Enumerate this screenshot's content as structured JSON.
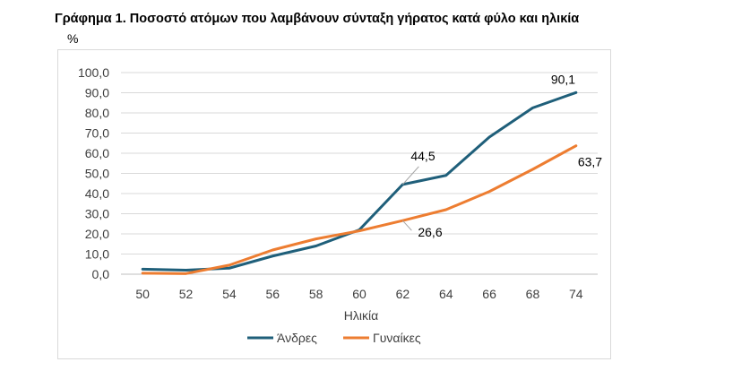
{
  "chart_data": {
    "type": "line",
    "title": "Γράφημα 1. Ποσοστό  ατόμων που λαμβάνουν σύνταξη γήρατος κατά φύλο και ηλικία",
    "ylabel": "%",
    "xlabel": "Ηλικία",
    "x": [
      "50",
      "52",
      "54",
      "56",
      "58",
      "60",
      "62",
      "64",
      "66",
      "68",
      "74"
    ],
    "ylim": [
      0,
      100
    ],
    "yticks": [
      "0,0",
      "10,0",
      "20,0",
      "30,0",
      "40,0",
      "50,0",
      "60,0",
      "70,0",
      "80,0",
      "90,0",
      "100,0"
    ],
    "grid": true,
    "legend": "bottom",
    "series": [
      {
        "name": "Άνδρες",
        "color": "#1f5f7a",
        "values": [
          2.5,
          2.0,
          3.0,
          9.0,
          14.0,
          22.0,
          44.5,
          49.0,
          68.0,
          82.5,
          90.1
        ]
      },
      {
        "name": "Γυναίκες",
        "color": "#ed7d31",
        "values": [
          0.5,
          0.3,
          4.5,
          12.0,
          17.5,
          21.5,
          26.6,
          32.0,
          41.0,
          52.0,
          63.7
        ]
      }
    ],
    "annotations": [
      {
        "text": "90,1",
        "series": 0,
        "index": 10
      },
      {
        "text": "44,5",
        "series": 0,
        "index": 6
      },
      {
        "text": "26,6",
        "series": 1,
        "index": 6
      },
      {
        "text": "63,7",
        "series": 1,
        "index": 10
      }
    ]
  }
}
